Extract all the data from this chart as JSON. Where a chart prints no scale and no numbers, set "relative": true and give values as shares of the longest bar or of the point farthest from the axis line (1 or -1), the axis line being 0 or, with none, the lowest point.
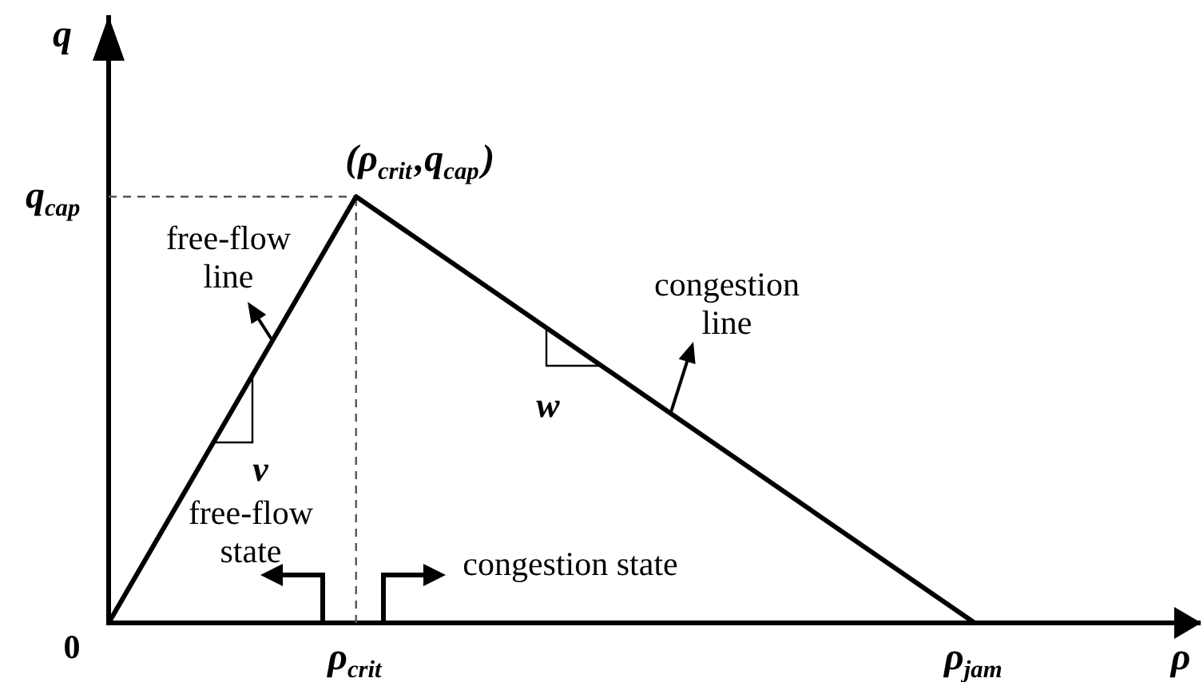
{
  "chart_data": {
    "type": "line",
    "relative": true,
    "xlabel": "ρ",
    "ylabel": "q",
    "categories": [
      null,
      null,
      "ρ$_{crit}$",
      null,
      null,
      null,
      null,
      "ρ$_{jam}$"
    ],
    "series": [
      {
        "color": "#000000",
        "values": [
          0,
          null,
          1,
          null,
          null,
          null,
          null,
          0
        ]
      }
    ],
    "ref_lines": [
      {
        "axis": "y",
        "value": 1,
        "color": "#555555",
        "line_style": "dashed"
      },
      {
        "axis": "x",
        "value": "ρ$_{crit}$",
        "color": "#555555",
        "line_style": "dashed"
      }
    ],
    "annotations": [
      {
        "text": "(ρ$_{crit}$,q$_{cap}$)",
        "x": "ρ$_{crit}$",
        "y": 1
      },
      "free-flow line",
      "v",
      "free-flow state",
      "congestion line",
      "w",
      "congestion state",
      "0",
      "q$_{cap}$"
    ]
  }
}
